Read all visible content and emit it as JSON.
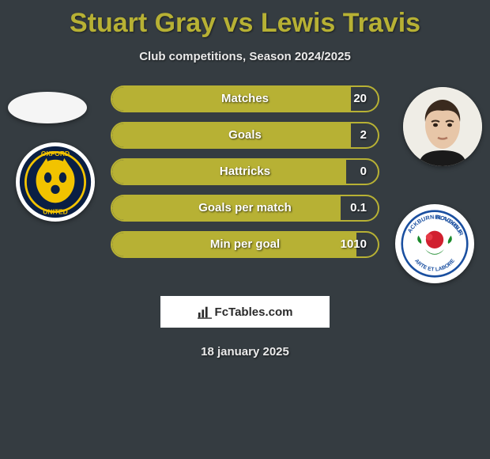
{
  "title": "Stuart Gray vs Lewis Travis",
  "subtitle": "Club competitions, Season 2024/2025",
  "date": "18 january 2025",
  "watermark": "FcTables.com",
  "colors": {
    "background": "#353c41",
    "accent": "#b7b134",
    "text_light": "#eaeaea"
  },
  "player_left": {
    "name": "Stuart Gray",
    "club": "Oxford United",
    "club_colors": {
      "primary": "#0a1f44",
      "secondary": "#f2c300"
    }
  },
  "player_right": {
    "name": "Lewis Travis",
    "club": "Blackburn Rovers",
    "club_colors": {
      "primary": "#1a4fa0",
      "secondary": "#d1202f",
      "leaf": "#1a8a2a"
    }
  },
  "stats": [
    {
      "label": "Matches",
      "value": "20",
      "fill_pct": 90
    },
    {
      "label": "Goals",
      "value": "2",
      "fill_pct": 90
    },
    {
      "label": "Hattricks",
      "value": "0",
      "fill_pct": 88
    },
    {
      "label": "Goals per match",
      "value": "0.1",
      "fill_pct": 86
    },
    {
      "label": "Min per goal",
      "value": "1010",
      "fill_pct": 92
    }
  ]
}
